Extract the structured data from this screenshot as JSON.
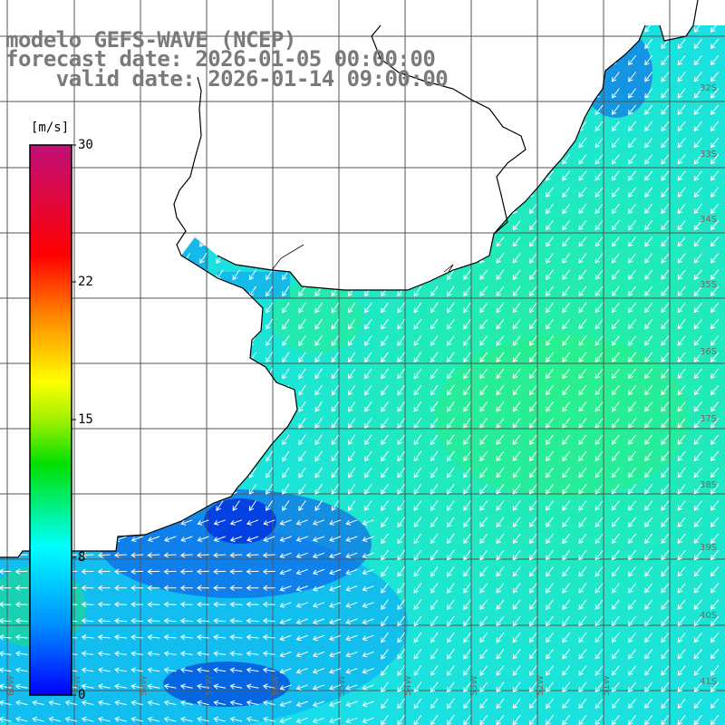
{
  "title": {
    "model": "modelo GEFS-WAVE (NCEP)",
    "forecast_date": "forecast date: 2026-01-05 00:00:00",
    "valid_date": "valid date: 2026-01-14 09:00:00"
  },
  "colorbar": {
    "unit": "[m/s]",
    "ticks": [
      "30",
      "22",
      "15",
      "8",
      "0"
    ],
    "range": [
      0,
      30
    ],
    "colors": [
      "#0000ff",
      "#00a0ff",
      "#00ffff",
      "#00ff00",
      "#ffff00",
      "#ff8000",
      "#ff0000",
      "#c00080"
    ]
  },
  "map": {
    "lat_labels": [
      "32S",
      "33S",
      "34S",
      "35S",
      "36S",
      "37S",
      "38S",
      "39S",
      "40S",
      "41S"
    ],
    "lon_labels": [
      "60W",
      "59W",
      "58W",
      "57W",
      "56W",
      "55W",
      "54W",
      "53W",
      "52W",
      "51W"
    ],
    "land_color": "#ffffff",
    "coast_color": "#000000",
    "grid_color": "#555555",
    "arrow_color": "#ffffff",
    "wind_direction": "toward southwest"
  }
}
